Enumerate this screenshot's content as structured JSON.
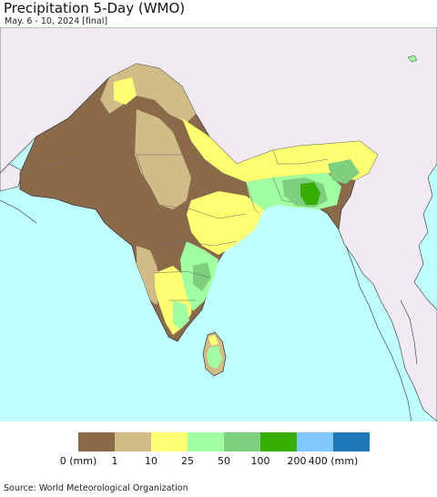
{
  "header": {
    "title": "Precipitation 5-Day (WMO)",
    "subtitle": "May. 6 - 10, 2024 [final]"
  },
  "legend": {
    "bins": [
      {
        "color": "#8b6a4a",
        "label": "0 (mm)"
      },
      {
        "color": "#d1bc87",
        "label": "1"
      },
      {
        "color": "#ffff72",
        "label": "10"
      },
      {
        "color": "#a0ffa0",
        "label": "25"
      },
      {
        "color": "#7ed07e",
        "label": "50"
      },
      {
        "color": "#36ad00",
        "label": "100"
      },
      {
        "color": "#80c8ff",
        "label": "200"
      },
      {
        "color": "#1e78b8",
        "label": "400 (mm)"
      }
    ]
  },
  "map": {
    "ocean_color": "#bfffff",
    "land_outside_color": "#f0eaf2",
    "border_color": "#333333"
  },
  "footer": {
    "source": "Source: World Meteorological Organization"
  }
}
